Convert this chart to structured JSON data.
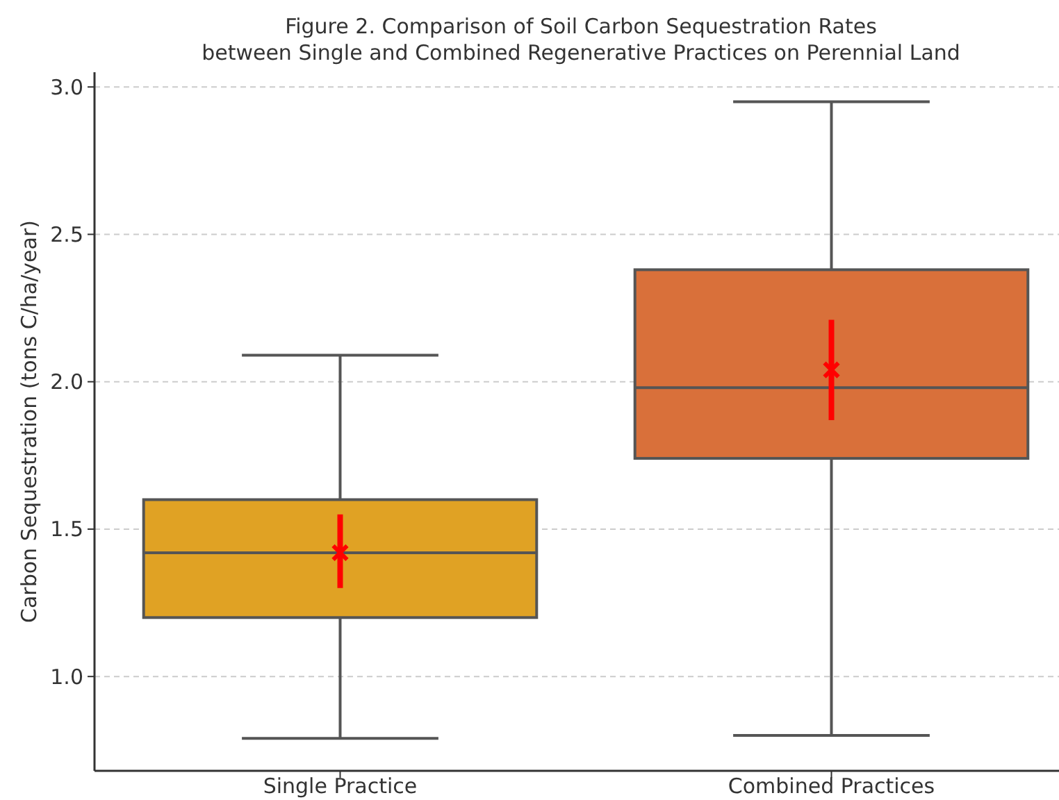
{
  "chart_data": {
    "type": "box",
    "title": "Figure 2. Comparison of Soil Carbon Sequestration Rates\nbetween Single and Combined Regenerative Practices on Perennial Land",
    "ylabel": "Carbon Sequestration (tons C/ha/year)",
    "categories": [
      "Single Practice",
      "Combined Practices"
    ],
    "ylim": [
      0.68,
      3.05
    ],
    "yticks": [
      {
        "value": 1,
        "label": "1.0"
      },
      {
        "value": 1.5,
        "label": "1.5"
      },
      {
        "value": 2,
        "label": "2.0"
      },
      {
        "value": 2.5,
        "label": "2.5"
      },
      {
        "value": 3,
        "label": "3.0"
      }
    ],
    "grid": "y",
    "colors": [
      "#e0a224",
      "#d9703a"
    ],
    "boxes": [
      {
        "low": 0.79,
        "q1": 1.2,
        "median": 1.42,
        "q3": 1.6,
        "high": 2.09
      },
      {
        "low": 0.8,
        "q1": 1.74,
        "median": 1.98,
        "q3": 2.38,
        "high": 2.95
      }
    ],
    "series": [
      {
        "type": "scatter",
        "x": [
          "Single Practice",
          "Combined Practices"
        ],
        "values": [
          1.42,
          2.04
        ],
        "errors": [
          [
            1.3,
            1.55
          ],
          [
            1.87,
            2.21
          ]
        ],
        "color": "#ff0000",
        "marker": "cross"
      }
    ]
  }
}
